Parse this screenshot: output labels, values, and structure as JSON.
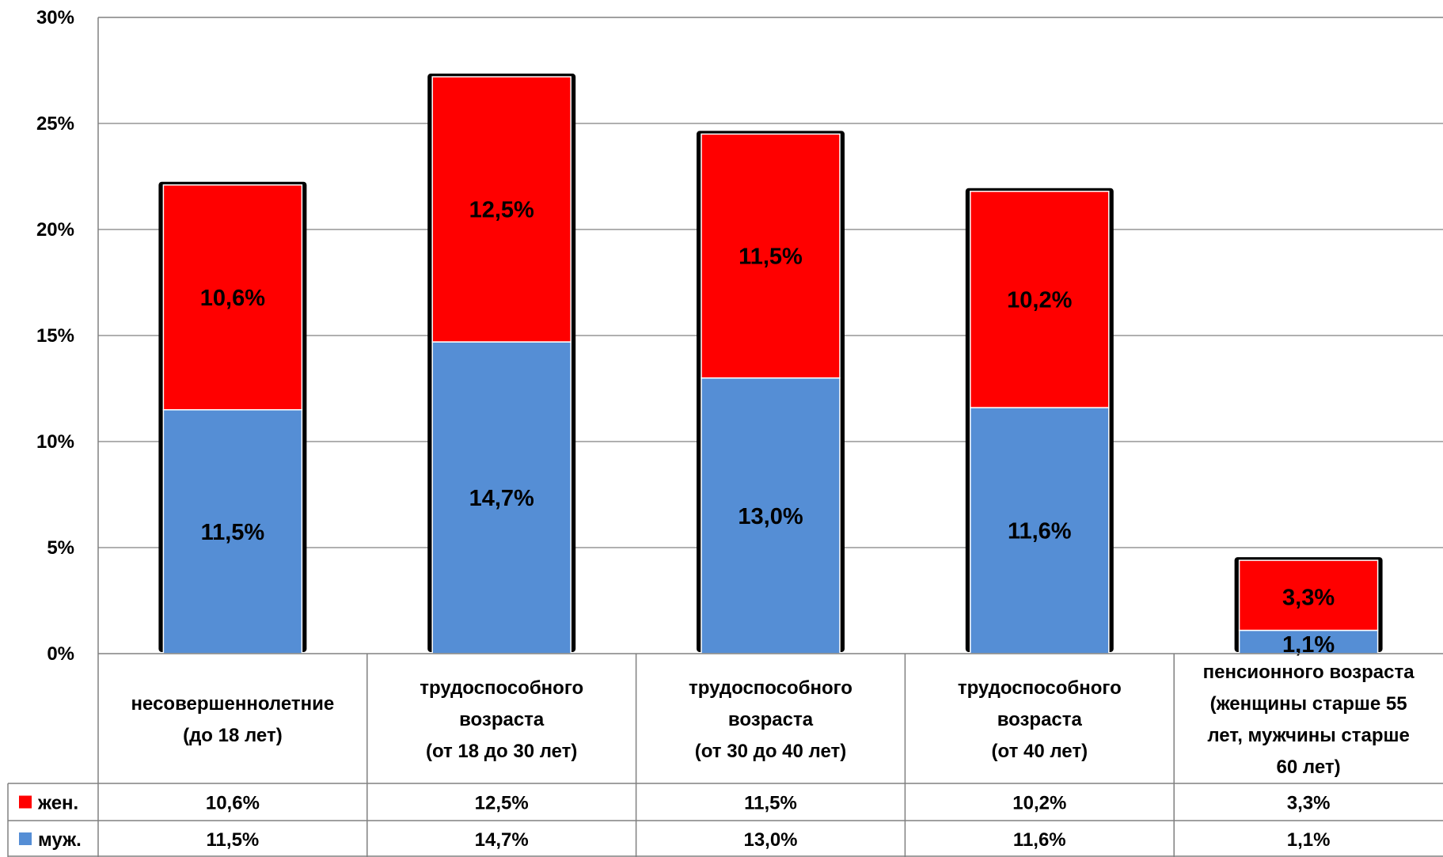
{
  "chart_data": {
    "type": "bar",
    "stacked": true,
    "title": "",
    "xlabel": "",
    "ylabel": "",
    "ylim": [
      0,
      30
    ],
    "y_ticks": [
      "0%",
      "5%",
      "10%",
      "15%",
      "20%",
      "25%",
      "30%"
    ],
    "grid": true,
    "legend_placement": "data-table-left",
    "categories": [
      [
        "несовершеннолетние",
        "(до 18 лет)"
      ],
      [
        "трудоспособного",
        "возраста",
        "(от 18 до 30 лет)"
      ],
      [
        "трудоспособного",
        "возраста",
        "(от 30 до 40 лет)"
      ],
      [
        "трудоспособного",
        "возраста",
        "(от 40 лет)"
      ],
      [
        "пенсионного возраста",
        "(женщины старше 55",
        "лет, мужчины старше",
        "60 лет)"
      ]
    ],
    "series": [
      {
        "name": "муж.",
        "color": "#558ED5",
        "values": [
          11.5,
          14.7,
          13.0,
          11.6,
          1.1
        ],
        "labels": [
          "11,5%",
          "14,7%",
          "13,0%",
          "11,6%",
          "1,1%"
        ]
      },
      {
        "name": "жен.",
        "color": "#FF0000",
        "values": [
          10.6,
          12.5,
          11.5,
          10.2,
          3.3
        ],
        "labels": [
          "10,6%",
          "12,5%",
          "11,5%",
          "10,2%",
          "3,3%"
        ]
      }
    ]
  }
}
